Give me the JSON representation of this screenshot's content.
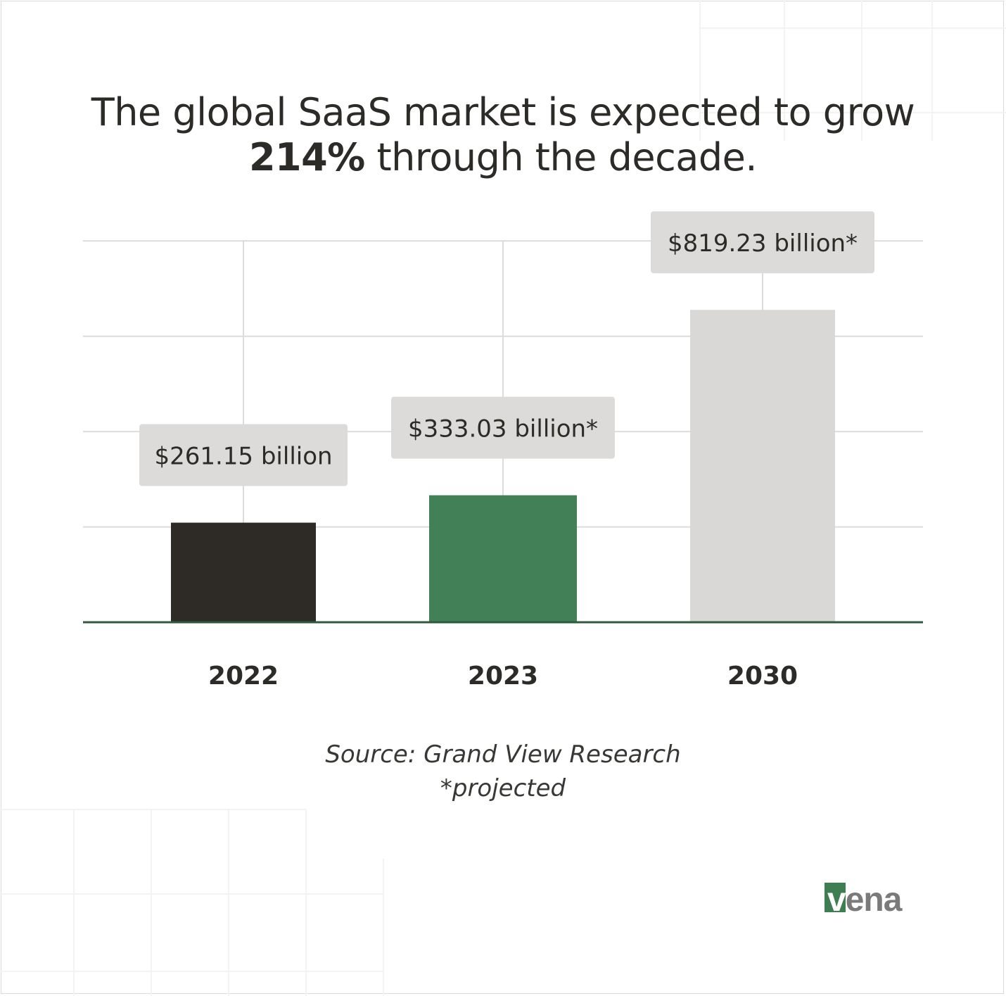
{
  "title": {
    "before": "The global SaaS market is expected to grow ",
    "highlight": "214%",
    "after": " through the decade."
  },
  "chart_data": {
    "type": "bar",
    "categories": [
      "2022",
      "2023",
      "2030"
    ],
    "values": [
      261.15,
      333.03,
      819.23
    ],
    "data_labels": [
      "$261.15 billion",
      "$333.03 billion*",
      "$819.23 billion*"
    ],
    "bar_colors": [
      "#2e2b27",
      "#428057",
      "#d9d8d6"
    ],
    "title": "The global SaaS market is expected to grow 214% through the decade.",
    "xlabel": "",
    "ylabel": "",
    "ylim": [
      0,
      1000
    ],
    "grid": true,
    "legend": "none"
  },
  "source": {
    "line1": "Source: Grand View Research",
    "line2": "*projected"
  },
  "logo": {
    "text": "vena",
    "brand_color": "#3f7d52",
    "text_color": "#7a7a7a"
  },
  "colors": {
    "axis": "#2f5a3d",
    "gridline": "#dcdcdc",
    "label_box": "#dcdbd9",
    "text": "#2d2b28"
  }
}
